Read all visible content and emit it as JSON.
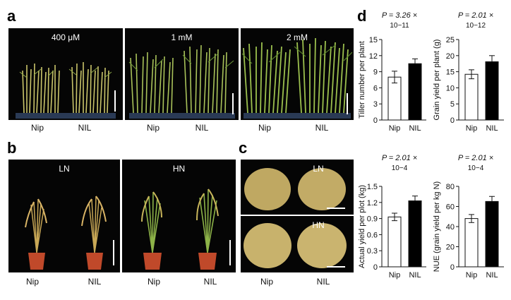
{
  "panel_labels": {
    "a": "a",
    "b": "b",
    "c": "c",
    "d": "d"
  },
  "panel_a": {
    "conditions": [
      "400 μM",
      "1 mM",
      "2 mM"
    ],
    "x_labels": [
      "Nip",
      "NIL"
    ]
  },
  "panel_b": {
    "conditions": [
      "LN",
      "HN"
    ],
    "x_labels": [
      "Nip",
      "NIL"
    ]
  },
  "panel_c": {
    "conditions": [
      "LN",
      "HN"
    ],
    "x_labels": [
      "Nip",
      "NIL"
    ]
  },
  "colors": {
    "nip_bar": "#ffffff",
    "nil_bar": "#000000",
    "photo_bg": "#050505",
    "pot": "#c0492a"
  },
  "chart_data": [
    {
      "type": "bar",
      "p_value": "P = 3.26 ×",
      "p_exponent": "10−11",
      "ylabel": "Tiller number per plant",
      "categories": [
        "Nip",
        "NIL"
      ],
      "values": [
        8.0,
        10.5
      ],
      "errors": [
        1.1,
        0.9
      ],
      "ylim": [
        0,
        15
      ],
      "yticks": [
        0,
        3,
        6,
        9,
        12,
        15
      ],
      "ytick_labels": [
        "0",
        "3",
        "6",
        "9",
        "12",
        "15"
      ]
    },
    {
      "type": "bar",
      "p_value": "P = 2.01 ×",
      "p_exponent": "10−12",
      "ylabel": "Grain yield per plant (g)",
      "categories": [
        "Nip",
        "NIL"
      ],
      "values": [
        14.2,
        18.1
      ],
      "errors": [
        1.4,
        1.9
      ],
      "ylim": [
        0,
        25
      ],
      "yticks": [
        0,
        5,
        10,
        15,
        20,
        25
      ],
      "ytick_labels": [
        "0",
        "5",
        "10",
        "15",
        "20",
        "25"
      ]
    },
    {
      "type": "bar",
      "p_value": "P = 2.01 ×",
      "p_exponent": "10−4",
      "ylabel": "Actual yield per plot (kg)",
      "categories": [
        "Nip",
        "NIL"
      ],
      "values": [
        0.93,
        1.23
      ],
      "errors": [
        0.07,
        0.09
      ],
      "ylim": [
        0,
        1.5
      ],
      "yticks": [
        0,
        0.3,
        0.6,
        0.9,
        1.2,
        1.5
      ],
      "ytick_labels": [
        "0",
        "0.3",
        "0.6",
        "0.9",
        "1.2",
        "1.5"
      ]
    },
    {
      "type": "bar",
      "p_value": "P = 2.01 ×",
      "p_exponent": "10−4",
      "ylabel": "NUE (grain yield per kg N)",
      "categories": [
        "Nip",
        "NIL"
      ],
      "values": [
        48,
        65
      ],
      "errors": [
        4,
        5
      ],
      "ylim": [
        0,
        80
      ],
      "yticks": [
        0,
        20,
        40,
        60,
        80
      ],
      "ytick_labels": [
        "0",
        "20",
        "40",
        "60",
        "80"
      ]
    }
  ]
}
